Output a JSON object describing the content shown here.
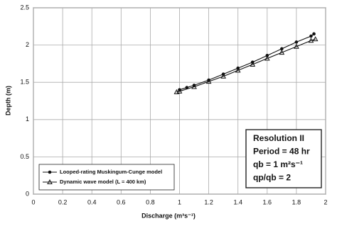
{
  "chart_data": {
    "type": "line",
    "xlabel": "Discharge (m³s⁻¹)",
    "ylabel": "Depth (m)",
    "series": [
      {
        "name": "Looped-rating Muskingum-Cunge model",
        "color": "#111111",
        "marker": "circle",
        "x": [
          1.0,
          1.05,
          1.1,
          1.2,
          1.3,
          1.4,
          1.5,
          1.6,
          1.7,
          1.8,
          1.9,
          1.92
        ],
        "values": [
          1.4,
          1.43,
          1.46,
          1.53,
          1.61,
          1.69,
          1.77,
          1.86,
          1.95,
          2.04,
          2.12,
          2.15
        ]
      },
      {
        "name": "Dynamic wave model (L = 400 km)",
        "color": "#111111",
        "marker": "triangle",
        "x": [
          0.98,
          1.0,
          1.1,
          1.2,
          1.3,
          1.4,
          1.5,
          1.6,
          1.7,
          1.8,
          1.9,
          1.93
        ],
        "values": [
          1.37,
          1.38,
          1.44,
          1.51,
          1.58,
          1.66,
          1.74,
          1.82,
          1.9,
          1.98,
          2.06,
          2.08
        ]
      }
    ],
    "xlim": [
      0,
      2
    ],
    "xticks": [
      0,
      0.2,
      0.4,
      0.6,
      0.8,
      1,
      1.2,
      1.4,
      1.6,
      1.8,
      2
    ],
    "ylim": [
      0,
      2.5
    ],
    "yticks": [
      0,
      0.5,
      1,
      1.5,
      2,
      2.5
    ],
    "grid": true,
    "legend": "lower left",
    "annotations": [
      "Resolution II",
      "Period = 48 hr",
      "qb = 1 m²s⁻¹",
      "qp/qb = 2"
    ]
  }
}
